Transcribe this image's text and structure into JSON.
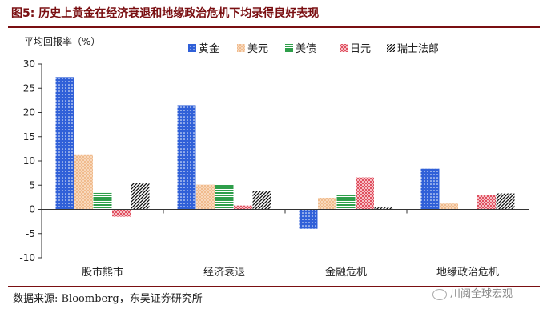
{
  "figure": {
    "title": "图5:  历史上黄金在经济衰退和地缘政治危机下均录得良好表现",
    "source": "数据来源:  Bloomberg，东吴证券研究所",
    "watermark": "川阅全球宏观"
  },
  "chart_data": {
    "type": "bar",
    "ylabel": "平均回报率（%）",
    "ylim": [
      -10,
      30
    ],
    "yticks": [
      -10,
      -5,
      0,
      5,
      10,
      15,
      20,
      25,
      30
    ],
    "grid": false,
    "legend_position": "top",
    "categories": [
      "股市熊市",
      "经济衰退",
      "金融危机",
      "地缘政治危机"
    ],
    "series": [
      {
        "name": "黄金",
        "color": "#3060d8",
        "pattern": "dots",
        "values": [
          27.3,
          21.5,
          -4.0,
          8.4
        ]
      },
      {
        "name": "美元",
        "color": "#f0b888",
        "pattern": "grid",
        "values": [
          11.2,
          5.1,
          2.4,
          1.2
        ]
      },
      {
        "name": "美债",
        "color": "#2e9e4a",
        "pattern": "hlines",
        "values": [
          3.4,
          5.2,
          3.0,
          0.0
        ]
      },
      {
        "name": "日元",
        "color": "#e05060",
        "pattern": "checker",
        "values": [
          -1.5,
          0.8,
          6.6,
          2.9
        ]
      },
      {
        "name": "瑞士法郎",
        "color": "#111111",
        "pattern": "diag",
        "values": [
          5.5,
          3.8,
          0.4,
          3.3
        ]
      }
    ]
  }
}
